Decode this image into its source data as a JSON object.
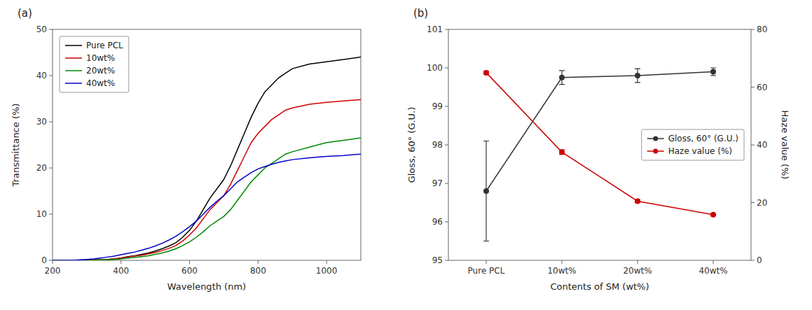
{
  "chart_data": [
    {
      "type": "line",
      "title": "(a)",
      "xlabel": "Wavelength (nm)",
      "ylabel": "Transmittance (%)",
      "xlim": [
        200,
        1100
      ],
      "ylim": [
        0,
        50
      ],
      "xticks": [
        200,
        400,
        600,
        800,
        1000
      ],
      "yticks": [
        0,
        10,
        20,
        30,
        40,
        50
      ],
      "grid": false,
      "legend": "upper left",
      "x": [
        200,
        220,
        240,
        260,
        280,
        300,
        320,
        340,
        360,
        380,
        400,
        420,
        440,
        460,
        480,
        500,
        520,
        540,
        560,
        580,
        600,
        620,
        640,
        660,
        680,
        700,
        720,
        740,
        760,
        780,
        800,
        820,
        840,
        860,
        880,
        900,
        950,
        1000,
        1050,
        1100
      ],
      "series": [
        {
          "name": "Pure PCL",
          "color": "#000000",
          "values": [
            0.0,
            0.0,
            0.0,
            0.0,
            0.0,
            0.0,
            0.1,
            0.1,
            0.2,
            0.3,
            0.5,
            0.8,
            1.0,
            1.3,
            1.6,
            2.0,
            2.5,
            3.1,
            3.8,
            5.0,
            6.5,
            8.5,
            11.0,
            13.5,
            15.5,
            17.5,
            20.5,
            24.0,
            27.5,
            31.0,
            34.0,
            36.5,
            38.0,
            39.5,
            40.5,
            41.5,
            42.5,
            43.0,
            43.5,
            44.0
          ]
        },
        {
          "name": "10wt%",
          "color": "#cc0000",
          "values": [
            0.0,
            0.0,
            0.0,
            0.0,
            0.0,
            0.0,
            0.1,
            0.1,
            0.2,
            0.3,
            0.5,
            0.7,
            0.9,
            1.1,
            1.4,
            1.7,
            2.1,
            2.6,
            3.2,
            4.2,
            5.5,
            7.0,
            9.0,
            11.0,
            12.5,
            14.0,
            16.5,
            19.5,
            22.5,
            25.5,
            27.5,
            29.0,
            30.5,
            31.5,
            32.5,
            33.0,
            33.8,
            34.2,
            34.5,
            34.8
          ]
        },
        {
          "name": "20wt%",
          "color": "#008800",
          "values": [
            0.0,
            0.0,
            0.0,
            0.0,
            0.0,
            0.0,
            0.0,
            0.1,
            0.1,
            0.2,
            0.3,
            0.5,
            0.6,
            0.8,
            1.0,
            1.3,
            1.6,
            2.0,
            2.5,
            3.2,
            4.0,
            5.0,
            6.2,
            7.5,
            8.5,
            9.5,
            11.0,
            13.0,
            15.0,
            17.0,
            18.5,
            20.0,
            21.0,
            22.0,
            23.0,
            23.5,
            24.5,
            25.5,
            26.0,
            26.5
          ]
        },
        {
          "name": "40wt%",
          "color": "#0000cc",
          "values": [
            0.0,
            0.0,
            0.0,
            0.0,
            0.1,
            0.2,
            0.3,
            0.5,
            0.7,
            0.9,
            1.2,
            1.5,
            1.8,
            2.2,
            2.6,
            3.1,
            3.7,
            4.4,
            5.2,
            6.2,
            7.3,
            8.5,
            10.0,
            11.5,
            12.8,
            14.0,
            15.5,
            17.0,
            18.0,
            19.0,
            19.8,
            20.3,
            20.8,
            21.2,
            21.5,
            21.8,
            22.2,
            22.5,
            22.7,
            23.0
          ]
        }
      ]
    },
    {
      "type": "line",
      "title": "(b)",
      "xlabel": "Contents of SM (wt%)",
      "ylabel": "Gloss, 60° (G.U.)",
      "y2label": "Haze value (%)",
      "categories": [
        "Pure PCL",
        "10wt%",
        "20wt%",
        "40wt%"
      ],
      "ylim": [
        95,
        101
      ],
      "yticks": [
        95,
        96,
        97,
        98,
        99,
        100,
        101
      ],
      "y2lim": [
        0,
        80
      ],
      "y2ticks": [
        0,
        20,
        40,
        60,
        80
      ],
      "grid": false,
      "legend": "center right",
      "series": [
        {
          "name": "Gloss, 60° (G.U.)",
          "color": "#333333",
          "marker": "circle",
          "line_style": "solid",
          "values": [
            96.8,
            99.75,
            99.8,
            99.9
          ],
          "errors": [
            1.3,
            0.18,
            0.18,
            0.1
          ]
        },
        {
          "name": "Haze value (%)",
          "color": "#cc0000",
          "marker": "circle",
          "line_style": "solid",
          "axis": "y2",
          "values": [
            65.0,
            37.5,
            20.5,
            15.8
          ],
          "errors": [
            0.5,
            0.8,
            0.5,
            0.3
          ]
        }
      ]
    }
  ]
}
